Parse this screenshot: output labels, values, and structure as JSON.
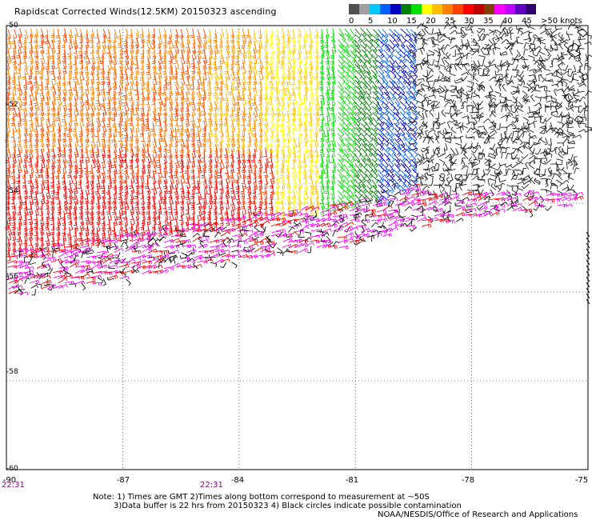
{
  "title": "Rapidscat Corrected Winds(12.5KM) 20150323 ascending",
  "legend": {
    "labels": [
      "0",
      "5",
      "10",
      "15",
      "20",
      "25",
      "30",
      "35",
      "40",
      "45",
      ">50 knots"
    ],
    "colors": [
      "#505050",
      "#a0a0a0",
      "#00c8ff",
      "#0060ff",
      "#0000c0",
      "#008000",
      "#00e000",
      "#ffff00",
      "#ffc000",
      "#ff8000",
      "#ff4000",
      "#ff0000",
      "#c00000",
      "#804000",
      "#ff00ff",
      "#c000ff",
      "#6000c0",
      "#300070"
    ]
  },
  "axes": {
    "y_labels": [
      "-50",
      "-52",
      "-54",
      "-56",
      "-58",
      "-60"
    ],
    "x_labels": [
      "-90",
      "-87",
      "-84",
      "-81",
      "-78",
      "-75"
    ],
    "lat_range": [
      -60,
      -50
    ],
    "lon_range": [
      -90,
      -75
    ]
  },
  "times": [
    "22:31",
    "22:31"
  ],
  "notes": {
    "line1": "Note: 1) Times are GMT 2)Times along bottom correspond to measurement at ~50S",
    "line2": "3)Data buffer is 22 hrs from 20150323 4) Black circles indicate possible contamination",
    "credit": "NOAA/NESDIS/Office of Research and Applications"
  }
}
